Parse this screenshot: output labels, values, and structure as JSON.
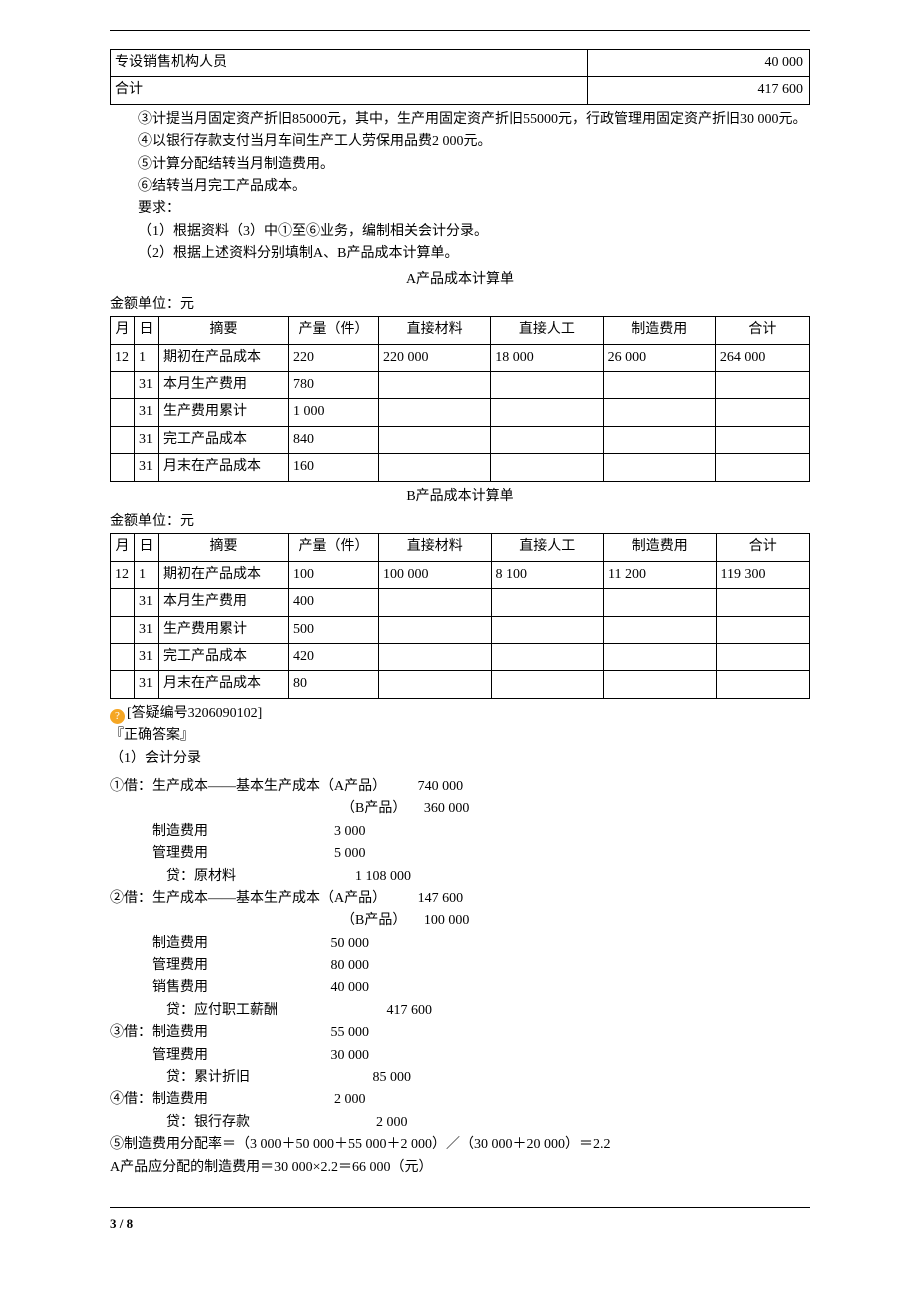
{
  "top_table": {
    "rows": [
      {
        "label": "专设销售机构人员",
        "amount": "40 000"
      },
      {
        "label": "合计",
        "amount": "417 600"
      }
    ]
  },
  "paras": {
    "p3": "③计提当月固定资产折旧85000元，其中，生产用固定资产折旧55000元，行政管理用固定资产折旧30 000元。",
    "p4": "④以银行存款支付当月车间生产工人劳保用品费2 000元。",
    "p5": "⑤计算分配结转当月制造费用。",
    "p6": "⑥结转当月完工产品成本。",
    "req": "要求：",
    "r1": "（1）根据资料（3）中①至⑥业务，编制相关会计分录。",
    "r2": "（2）根据上述资料分别填制A、B产品成本计算单。"
  },
  "tableA": {
    "title": "A产品成本计算单",
    "unit": "金额单位：元",
    "headers": [
      "月",
      "日",
      "摘要",
      "产量（件）",
      "直接材料",
      "直接人工",
      "制造费用",
      "合计"
    ],
    "rows": [
      [
        "12",
        "1",
        "期初在产品成本",
        "220",
        "220 000",
        "18 000",
        "26 000",
        "264 000"
      ],
      [
        "",
        "31",
        "本月生产费用",
        "780",
        "",
        "",
        "",
        ""
      ],
      [
        "",
        "31",
        "生产费用累计",
        "1 000",
        "",
        "",
        "",
        ""
      ],
      [
        "",
        "31",
        "完工产品成本",
        "840",
        "",
        "",
        "",
        ""
      ],
      [
        "",
        "31",
        "月末在产品成本",
        "160",
        "",
        "",
        "",
        ""
      ]
    ]
  },
  "tableB": {
    "title": "B产品成本计算单",
    "unit": "金额单位：元",
    "headers": [
      "月",
      "日",
      "摘要",
      "产量（件）",
      "直接材料",
      "直接人工",
      "制造费用",
      "合计"
    ],
    "rows": [
      [
        "12",
        "1",
        "期初在产品成本",
        "100",
        "100 000",
        "8 100",
        "11 200",
        "119 300"
      ],
      [
        "",
        "31",
        "本月生产费用",
        "400",
        "",
        "",
        "",
        ""
      ],
      [
        "",
        "31",
        "生产费用累计",
        "500",
        "",
        "",
        "",
        ""
      ],
      [
        "",
        "31",
        "完工产品成本",
        "420",
        "",
        "",
        "",
        ""
      ],
      [
        "",
        "31",
        "月末在产品成本",
        "80",
        "",
        "",
        "",
        ""
      ]
    ]
  },
  "qna": {
    "qid": "[答疑编号3206090102]",
    "ans_label": "『正确答案』",
    "sec1": "（1）会计分录"
  },
  "entries": [
    {
      "l": "①借：生产成本——基本生产成本（A产品）",
      "a": "740 000",
      "ind": 0,
      "ai": 48
    },
    {
      "l": "（B产品）",
      "a": "360 000",
      "ind": 34,
      "ai": 48
    },
    {
      "l": "制造费用",
      "a": "3 000",
      "ind": 6,
      "ai": 50
    },
    {
      "l": "管理费用",
      "a": "5 000",
      "ind": 6,
      "ai": 50
    },
    {
      "l": "贷：原材料",
      "a": "1 108 000",
      "ind": 8,
      "ai": 52
    },
    {
      "l": "②借：生产成本——基本生产成本（A产品）",
      "a": "147 600",
      "ind": 0,
      "ai": 48
    },
    {
      "l": "（B产品）",
      "a": "100 000",
      "ind": 34,
      "ai": 48
    },
    {
      "l": "制造费用",
      "a": "50 000",
      "ind": 6,
      "ai": 49
    },
    {
      "l": "管理费用",
      "a": "80 000",
      "ind": 6,
      "ai": 49
    },
    {
      "l": "销售费用",
      "a": "40 000",
      "ind": 6,
      "ai": 49
    },
    {
      "l": "贷：应付职工薪酬",
      "a": "417 600",
      "ind": 8,
      "ai": 55
    },
    {
      "l": "③借：制造费用",
      "a": "55 000",
      "ind": 0,
      "ai": 49
    },
    {
      "l": "管理费用",
      "a": "30 000",
      "ind": 6,
      "ai": 49
    },
    {
      "l": "贷：累计折旧",
      "a": "85 000",
      "ind": 8,
      "ai": 55
    },
    {
      "l": "④借：制造费用",
      "a": "2 000",
      "ind": 0,
      "ai": 50
    },
    {
      "l": "贷：银行存款",
      "a": "2 000",
      "ind": 8,
      "ai": 56
    }
  ],
  "calc": {
    "line1": "⑤制造费用分配率＝（3 000＋50 000＋55 000＋2 000）／（30 000＋20 000）＝2.2",
    "line2": "A产品应分配的制造费用＝30 000×2.2＝66 000（元）"
  },
  "footer": {
    "pg": "3 / 8"
  },
  "colors": {
    "icon_bg": "#f5a623"
  }
}
